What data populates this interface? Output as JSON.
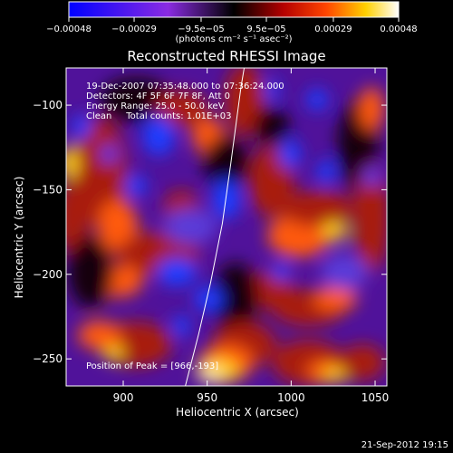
{
  "chart_data": {
    "type": "heatmap",
    "title": "Reconstructed RHESSI Image",
    "xlabel": "Heliocentric X (arcsec)",
    "ylabel": "Heliocentric Y (arcsec)",
    "xlim": [
      866,
      1057
    ],
    "ylim": [
      -266,
      -78
    ],
    "x_ticks": [
      900,
      950,
      1000,
      1050
    ],
    "y_ticks": [
      -100,
      -150,
      -200,
      -250
    ],
    "x_tick_labels": [
      "900",
      "950",
      "1000",
      "1050"
    ],
    "y_tick_labels": [
      "−100",
      "−150",
      "−200",
      "−250"
    ],
    "colorbar": {
      "range": [
        -0.00048,
        0.00048
      ],
      "ticks": [
        -0.00048,
        -0.00029,
        -9.5e-05,
        9.5e-05,
        0.00029,
        0.00048
      ],
      "tick_labels": [
        "−0.00048",
        "−0.00029",
        "−9.5e−05",
        "9.5e−05",
        "0.00029",
        "0.00048"
      ],
      "units_label": "(photons cm⁻² s⁻¹ asec⁻²)",
      "colors": [
        "#0000ff",
        "#8a2be2",
        "#000000",
        "#b40000",
        "#ff4500",
        "#ffd000",
        "#ffffff"
      ]
    },
    "annotations": [
      "19-Dec-2007 07:35:48.000 to 07:36:24.000",
      "Detectors: 4F 5F 6F 7F 8F, Att 0",
      "Energy Range: 25.0 - 50.0 keV",
      "Clean     Total counts: 1.01E+03"
    ],
    "peak_label": "Position of Peak = [966,-193]",
    "limb_points": [
      [
        937,
        -266
      ],
      [
        945,
        -235
      ],
      [
        952,
        -205
      ],
      [
        959,
        -170
      ],
      [
        964,
        -135
      ],
      [
        970,
        -90
      ],
      [
        972,
        -78
      ]
    ]
  },
  "footer": {
    "timestamp": "21-Sep-2012 19:15"
  }
}
